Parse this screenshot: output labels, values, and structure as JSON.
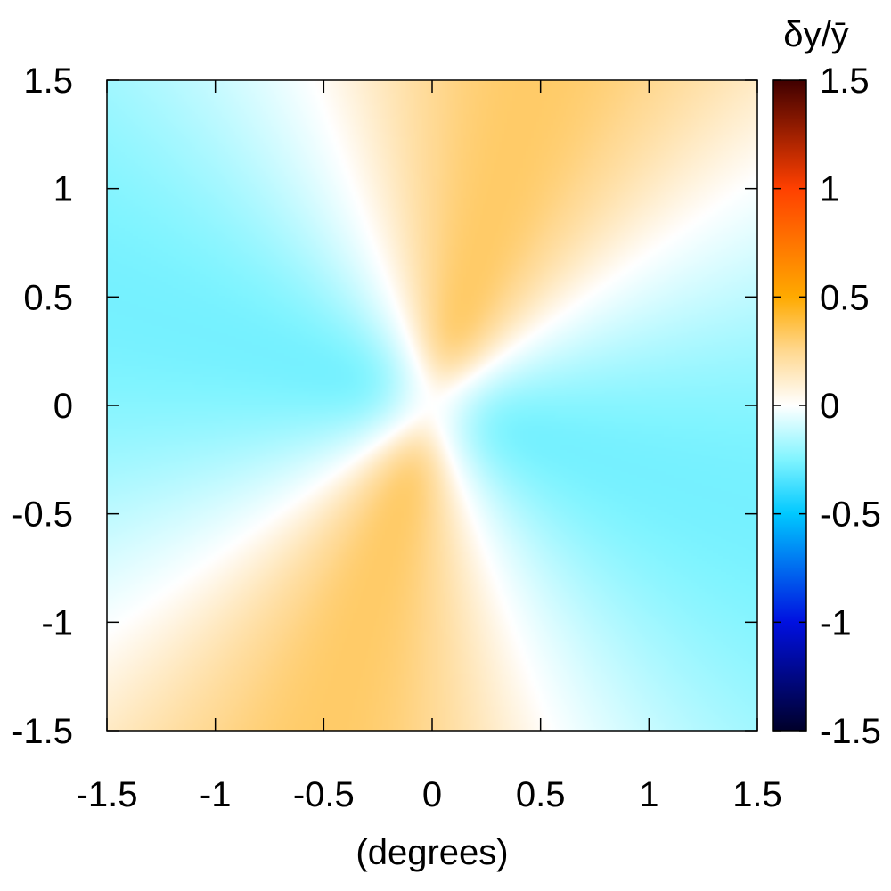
{
  "chart_data": {
    "type": "heatmap",
    "title": "",
    "xlabel": "(degrees)",
    "ylabel": "",
    "xlim": [
      -1.5,
      1.5
    ],
    "ylim": [
      -1.5,
      1.5
    ],
    "x_ticks": [
      "-1.5",
      "-1",
      "-0.5",
      "0",
      "0.5",
      "1",
      "1.5"
    ],
    "y_ticks": [
      "-1.5",
      "-1",
      "-0.5",
      "0",
      "0.5",
      "1",
      "1.5"
    ],
    "colorbar": {
      "label": "δy/ȳ",
      "range": [
        -1.5,
        1.5
      ],
      "ticks": [
        "-1.5",
        "-1",
        "-0.5",
        "0",
        "0.5",
        "1",
        "1.5"
      ],
      "stops": [
        {
          "value": -1.5,
          "color": "#00002a"
        },
        {
          "value": -1.0,
          "color": "#0010e0"
        },
        {
          "value": -0.5,
          "color": "#00c8ff"
        },
        {
          "value": -0.25,
          "color": "#80f4ff"
        },
        {
          "value": 0.0,
          "color": "#ffffff"
        },
        {
          "value": 0.25,
          "color": "#ffd890"
        },
        {
          "value": 0.5,
          "color": "#ffaa00"
        },
        {
          "value": 1.0,
          "color": "#ff4000"
        },
        {
          "value": 1.5,
          "color": "#400000"
        }
      ]
    },
    "field": {
      "description": "quadrupolar pattern: positive (orange) in upper/lower wedges, negative (cyan) in left/right wedges",
      "positive_peak": 0.32,
      "negative_peak": -0.27,
      "zero_line_angles_deg": [
        35,
        110
      ]
    },
    "grid": false,
    "legend": "colorbar-right"
  }
}
